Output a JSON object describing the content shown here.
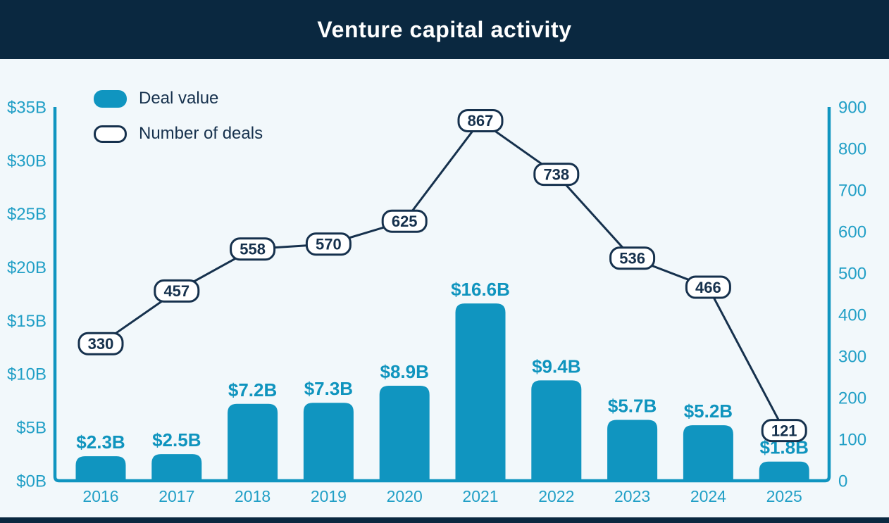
{
  "header": {
    "title": "Venture capital activity"
  },
  "legend": {
    "deal_value_label": "Deal value",
    "num_deals_label": "Number of deals"
  },
  "colors": {
    "header_navy": "#0a2840",
    "line_navy": "#16314d",
    "bar_teal": "#1095c0",
    "tick_teal": "#219fc6",
    "badge_fill": "#ffffff",
    "background": "#f2f8fb"
  },
  "chart_data": {
    "type": "bar+line",
    "title": "Venture capital activity",
    "categories": [
      "2016",
      "2017",
      "2018",
      "2019",
      "2020",
      "2021",
      "2022",
      "2023",
      "2024",
      "2025"
    ],
    "series": [
      {
        "name": "Deal value",
        "type": "bar",
        "axis": "left",
        "unit": "$B",
        "values": [
          2.3,
          2.5,
          7.2,
          7.3,
          8.9,
          16.6,
          9.4,
          5.7,
          5.2,
          1.8
        ],
        "labels": [
          "$2.3B",
          "$2.5B",
          "$7.2B",
          "$7.3B",
          "$8.9B",
          "$16.6B",
          "$9.4B",
          "$5.7B",
          "$5.2B",
          "$1.8B"
        ]
      },
      {
        "name": "Number of deals",
        "type": "line",
        "axis": "right",
        "values": [
          330,
          457,
          558,
          570,
          625,
          867,
          738,
          536,
          466,
          121
        ],
        "labels": [
          "330",
          "457",
          "558",
          "570",
          "625",
          "867",
          "738",
          "536",
          "466",
          "121"
        ]
      }
    ],
    "left_axis": {
      "min": 0,
      "max": 35,
      "ticks": [
        "$0B",
        "$5B",
        "$10B",
        "$15B",
        "$20B",
        "$25B",
        "$30B",
        "$35B"
      ]
    },
    "right_axis": {
      "min": 0,
      "max": 900,
      "ticks": [
        "0",
        "100",
        "200",
        "300",
        "400",
        "500",
        "600",
        "700",
        "800",
        "900"
      ]
    },
    "grid": false,
    "legend_position": "top-left"
  }
}
